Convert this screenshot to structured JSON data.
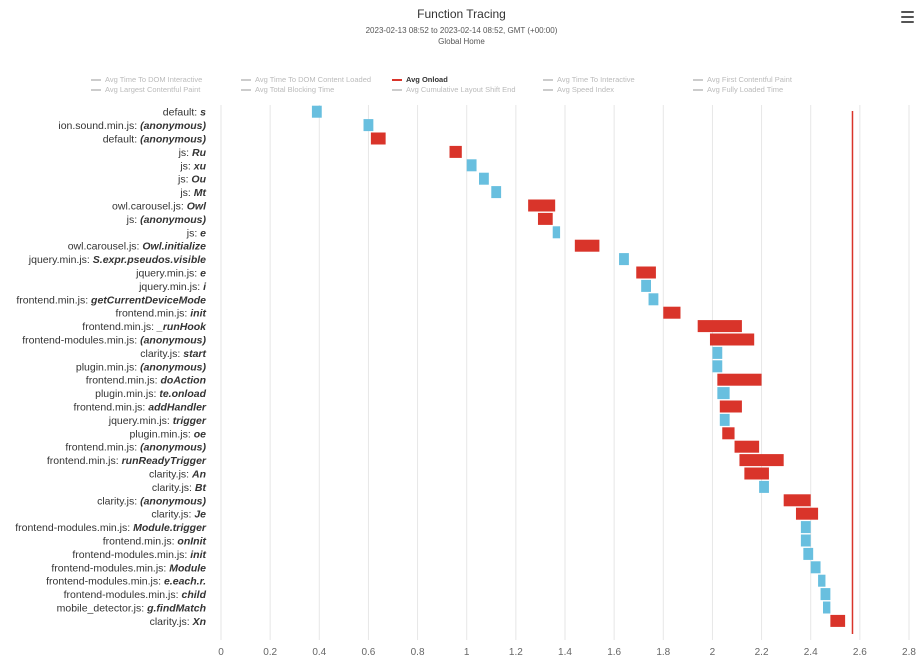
{
  "title": "Function Tracing",
  "subtitle": [
    "2023-02-13 08:52 to 2023-02-14 08:52, GMT (+00:00)",
    "Global Home"
  ],
  "menu_icon": "hamburger-menu-icon",
  "colors": {
    "onload": "#d9342a",
    "other": "#68bfdf",
    "marker": "#d9342a",
    "grid": "#e6e6e6",
    "legend_inactive": "#cccccc"
  },
  "legend": [
    {
      "label": "Avg Time To DOM Interactive",
      "active": false
    },
    {
      "label": "Avg Time To DOM Content Loaded",
      "active": false
    },
    {
      "label": "Avg Onload",
      "active": true
    },
    {
      "label": "Avg Time To Interactive",
      "active": false
    },
    {
      "label": "Avg First Contentful Paint",
      "active": false
    },
    {
      "label": "Avg Largest Contentful Paint",
      "active": false
    },
    {
      "label": "Avg Total Blocking Time",
      "active": false
    },
    {
      "label": "Avg Cumulative Layout Shift End",
      "active": false
    },
    {
      "label": "Avg Speed Index",
      "active": false
    },
    {
      "label": "Avg Fully Loaded Time",
      "active": false
    }
  ],
  "chart_data": {
    "type": "bar",
    "orientation": "horizontal-gantt",
    "xlim": [
      0,
      2.8
    ],
    "xticks": [
      "0",
      "0.2",
      "0.4",
      "0.6",
      "0.8",
      "1",
      "1.2",
      "1.4",
      "1.6",
      "1.8",
      "2",
      "2.2",
      "2.4",
      "2.6",
      "2.8"
    ],
    "grid": true,
    "legend_position": "top",
    "onload_marker": 2.57,
    "rows": [
      {
        "file": "default",
        "fn": "s",
        "start": 0.37,
        "end": 0.41,
        "onload": false
      },
      {
        "file": "ion.sound.min.js",
        "fn": "(anonymous)",
        "start": 0.58,
        "end": 0.62,
        "onload": false
      },
      {
        "file": "default",
        "fn": "(anonymous)",
        "start": 0.61,
        "end": 0.67,
        "onload": true
      },
      {
        "file": "js",
        "fn": "Ru",
        "start": 0.93,
        "end": 0.98,
        "onload": true
      },
      {
        "file": "js",
        "fn": "xu",
        "start": 1.0,
        "end": 1.04,
        "onload": false
      },
      {
        "file": "js",
        "fn": "Ou",
        "start": 1.05,
        "end": 1.09,
        "onload": false
      },
      {
        "file": "js",
        "fn": "Mt",
        "start": 1.1,
        "end": 1.14,
        "onload": false
      },
      {
        "file": "owl.carousel.js",
        "fn": "Owl",
        "start": 1.25,
        "end": 1.36,
        "onload": true
      },
      {
        "file": "js",
        "fn": "(anonymous)",
        "start": 1.29,
        "end": 1.35,
        "onload": true
      },
      {
        "file": "js",
        "fn": "e",
        "start": 1.35,
        "end": 1.38,
        "onload": false
      },
      {
        "file": "owl.carousel.js",
        "fn": "Owl.initialize",
        "start": 1.44,
        "end": 1.54,
        "onload": true
      },
      {
        "file": "jquery.min.js",
        "fn": "S.expr.pseudos.visible",
        "start": 1.62,
        "end": 1.66,
        "onload": false
      },
      {
        "file": "jquery.min.js",
        "fn": "e",
        "start": 1.69,
        "end": 1.77,
        "onload": true
      },
      {
        "file": "jquery.min.js",
        "fn": "i",
        "start": 1.71,
        "end": 1.75,
        "onload": false
      },
      {
        "file": "frontend.min.js",
        "fn": "getCurrentDeviceMode",
        "start": 1.74,
        "end": 1.78,
        "onload": false
      },
      {
        "file": "frontend.min.js",
        "fn": "init",
        "start": 1.8,
        "end": 1.87,
        "onload": true
      },
      {
        "file": "frontend.min.js",
        "fn": "_runHook",
        "start": 1.94,
        "end": 2.12,
        "onload": true
      },
      {
        "file": "frontend-modules.min.js",
        "fn": "(anonymous)",
        "start": 1.99,
        "end": 2.17,
        "onload": true
      },
      {
        "file": "clarity.js",
        "fn": "start",
        "start": 2.0,
        "end": 2.04,
        "onload": false
      },
      {
        "file": "plugin.min.js",
        "fn": "(anonymous)",
        "start": 2.0,
        "end": 2.04,
        "onload": false
      },
      {
        "file": "frontend.min.js",
        "fn": "doAction",
        "start": 2.02,
        "end": 2.2,
        "onload": true
      },
      {
        "file": "plugin.min.js",
        "fn": "te.onload",
        "start": 2.02,
        "end": 2.07,
        "onload": false
      },
      {
        "file": "frontend.min.js",
        "fn": "addHandler",
        "start": 2.03,
        "end": 2.12,
        "onload": true
      },
      {
        "file": "jquery.min.js",
        "fn": "trigger",
        "start": 2.03,
        "end": 2.07,
        "onload": false
      },
      {
        "file": "plugin.min.js",
        "fn": "oe",
        "start": 2.04,
        "end": 2.09,
        "onload": true
      },
      {
        "file": "frontend.min.js",
        "fn": "(anonymous)",
        "start": 2.09,
        "end": 2.19,
        "onload": true
      },
      {
        "file": "frontend.min.js",
        "fn": "runReadyTrigger",
        "start": 2.11,
        "end": 2.29,
        "onload": true
      },
      {
        "file": "clarity.js",
        "fn": "An",
        "start": 2.13,
        "end": 2.23,
        "onload": true
      },
      {
        "file": "clarity.js",
        "fn": "Bt",
        "start": 2.19,
        "end": 2.23,
        "onload": false
      },
      {
        "file": "clarity.js",
        "fn": "(anonymous)",
        "start": 2.29,
        "end": 2.4,
        "onload": true
      },
      {
        "file": "clarity.js",
        "fn": "Je",
        "start": 2.34,
        "end": 2.43,
        "onload": true
      },
      {
        "file": "frontend-modules.min.js",
        "fn": "Module.trigger",
        "start": 2.36,
        "end": 2.4,
        "onload": false
      },
      {
        "file": "frontend.min.js",
        "fn": "onInit",
        "start": 2.36,
        "end": 2.4,
        "onload": false
      },
      {
        "file": "frontend-modules.min.js",
        "fn": "init",
        "start": 2.37,
        "end": 2.41,
        "onload": false
      },
      {
        "file": "frontend-modules.min.js",
        "fn": "Module",
        "start": 2.4,
        "end": 2.44,
        "onload": false
      },
      {
        "file": "frontend-modules.min.js",
        "fn": "e.each.r.",
        "start": 2.43,
        "end": 2.46,
        "onload": false
      },
      {
        "file": "frontend-modules.min.js",
        "fn": "child",
        "start": 2.44,
        "end": 2.48,
        "onload": false
      },
      {
        "file": "mobile_detector.js",
        "fn": "g.findMatch",
        "start": 2.45,
        "end": 2.48,
        "onload": false
      },
      {
        "file": "clarity.js",
        "fn": "Xn",
        "start": 2.48,
        "end": 2.54,
        "onload": true
      }
    ]
  }
}
